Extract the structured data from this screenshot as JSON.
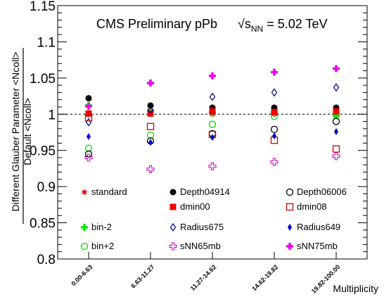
{
  "chart_data": {
    "type": "scatter",
    "title": "CMS Preliminary pPb",
    "energy_label": {
      "prefix": "√",
      "s": "s",
      "sub": "NN",
      "suffix": " = 5.02 TeV"
    },
    "xlabel": "Multiplicity",
    "ylabel_numerator": "Different Glauber Parameter <Ncoll>",
    "ylabel_denominator": "Default <Ncoll>",
    "ylim": [
      0.8,
      1.15
    ],
    "yticks": [
      "0.8",
      "0.85",
      "0.9",
      "0.95",
      "1",
      "1.05",
      "1.1",
      "1.15"
    ],
    "categories": [
      "0.00-6.63",
      "6.63-11.27",
      "11.27-14.62",
      "14.62-19.82",
      "19.82-100.00"
    ],
    "reference_line": 1.0,
    "grid": false,
    "legend_position": "bottom, inside plot",
    "series": [
      {
        "name": "standard",
        "marker": "star",
        "color": "#cc0000",
        "values": [
          1.0,
          1.0,
          1.0,
          1.0,
          1.0
        ]
      },
      {
        "name": "bin-2",
        "marker": "filled-cross",
        "color": "#00ee00",
        "values": [
          1.012,
          1.005,
          1.002,
          1.002,
          0.998
        ]
      },
      {
        "name": "bin+2",
        "marker": "open-circle",
        "color": "#00dd00",
        "values": [
          0.953,
          0.971,
          0.986,
          0.997,
          0.999
        ]
      },
      {
        "name": "Depth04914",
        "marker": "filled-circle",
        "color": "#000000",
        "values": [
          1.022,
          1.012,
          1.009,
          1.009,
          1.009
        ]
      },
      {
        "name": "dmin00",
        "marker": "filled-square",
        "color": "#ee0000",
        "values": [
          1.001,
          1.001,
          1.004,
          1.003,
          1.004
        ]
      },
      {
        "name": "Radius675",
        "marker": "open-diamond",
        "color": "#000080",
        "values": [
          0.989,
          1.006,
          1.024,
          1.03,
          1.037
        ]
      },
      {
        "name": "sNN65mb",
        "marker": "open-cross",
        "color": "#dd00dd",
        "values": [
          0.94,
          0.924,
          0.928,
          0.934,
          0.942
        ]
      },
      {
        "name": "Depth06006",
        "marker": "open-circle",
        "color": "#000000",
        "values": [
          0.945,
          0.963,
          0.973,
          0.979,
          0.99
        ]
      },
      {
        "name": "dmin08",
        "marker": "open-square",
        "color": "#cc0000",
        "values": [
          0.995,
          0.983,
          0.972,
          0.964,
          0.952
        ]
      },
      {
        "name": "Radius649",
        "marker": "filled-diamond",
        "color": "#0000cc",
        "values": [
          0.969,
          0.961,
          0.968,
          0.97,
          0.976
        ]
      },
      {
        "name": "sNN75mb",
        "marker": "filled-cross",
        "color": "#ee00ee",
        "values": [
          1.011,
          1.043,
          1.053,
          1.058,
          1.063
        ]
      }
    ]
  }
}
